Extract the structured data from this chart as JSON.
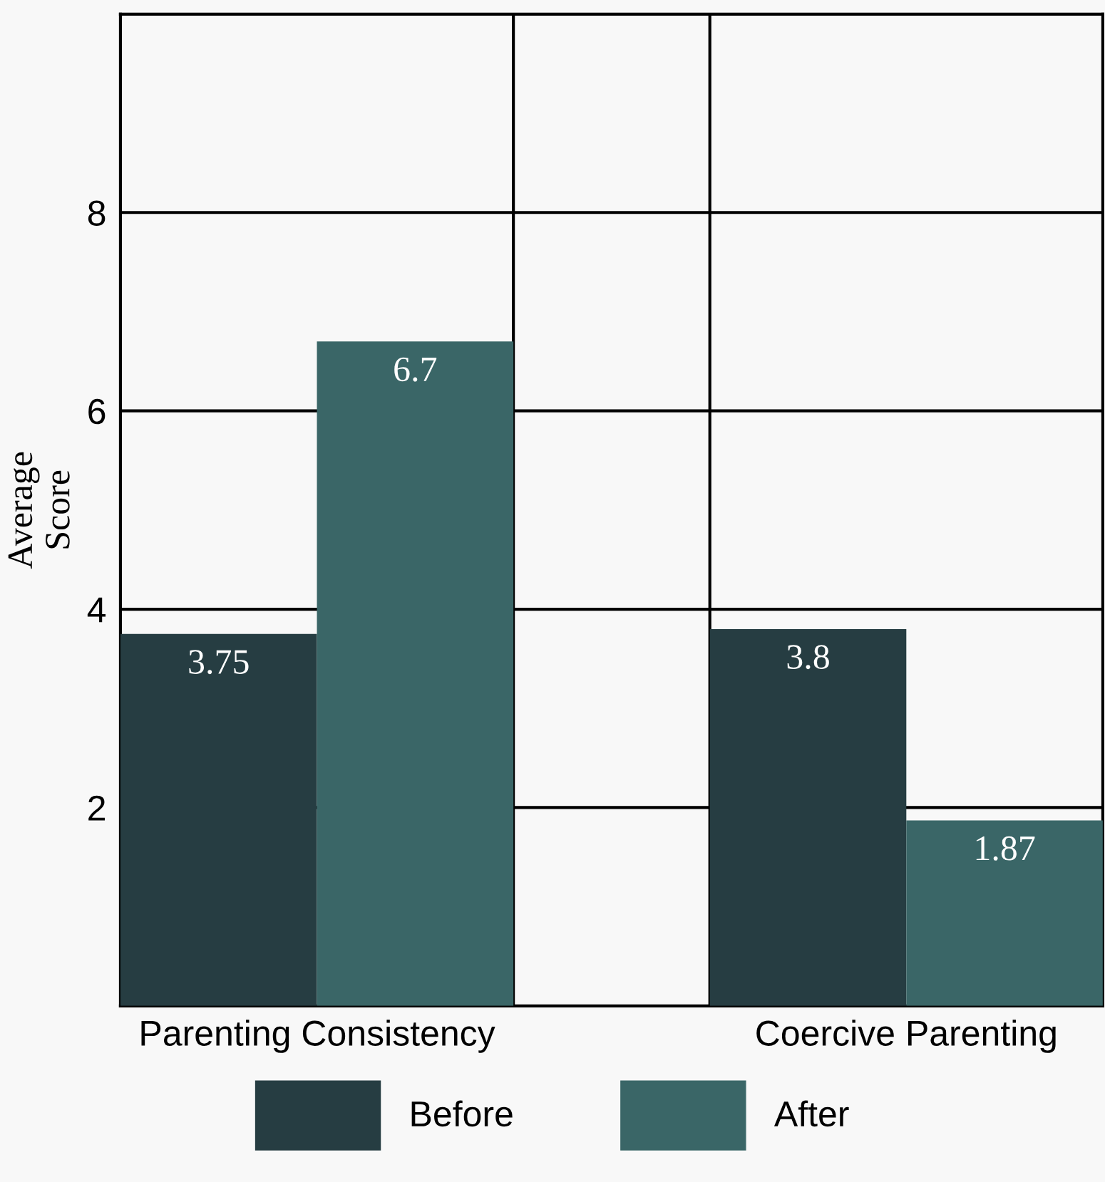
{
  "chart_data": {
    "type": "bar",
    "ylabel": "Average\nScore",
    "categories": [
      "Parenting Consistency",
      "Coercive Parenting"
    ],
    "series": [
      {
        "name": "Before",
        "color": "#263d42",
        "values": [
          3.75,
          3.8
        ]
      },
      {
        "name": "After",
        "color": "#3a6667",
        "values": [
          6.7,
          1.87
        ]
      }
    ],
    "ylim": [
      0,
      10
    ],
    "yticks": [
      2,
      4,
      6,
      8
    ],
    "grid": true,
    "legend": "bottom",
    "data_labels": true
  }
}
